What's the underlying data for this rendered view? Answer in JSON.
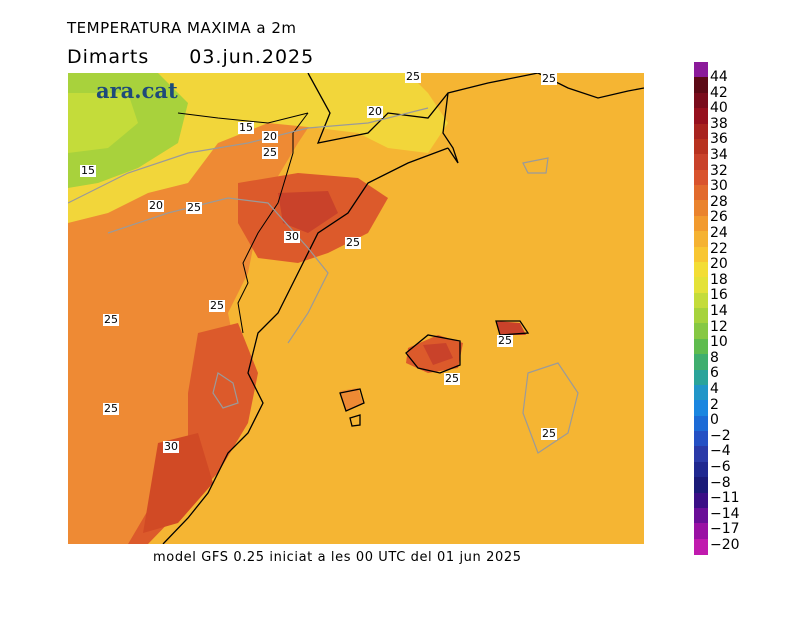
{
  "header": {
    "title": "TEMPERATURA MAXIMA a 2m",
    "day": "Dimarts",
    "date": "03.jun.2025"
  },
  "branding": {
    "logo_text": "ara.cat"
  },
  "footer": {
    "model_info": "model GFS 0.25 iniciat a les 00 UTC del 01 jun 2025"
  },
  "map": {
    "variable": "maximum 2m temperature",
    "contour_labels": [
      "25",
      "25",
      "20",
      "15",
      "20",
      "25",
      "15",
      "20",
      "25",
      "30",
      "25",
      "25",
      "25",
      "25",
      "25",
      "25",
      "30",
      "25"
    ]
  },
  "colorbar": {
    "labels": [
      "44",
      "42",
      "40",
      "38",
      "36",
      "34",
      "32",
      "30",
      "28",
      "26",
      "24",
      "22",
      "20",
      "18",
      "16",
      "14",
      "12",
      "10",
      "8",
      "6",
      "4",
      "2",
      "0",
      "−2",
      "−4",
      "−6",
      "−8",
      "−11",
      "−14",
      "−17",
      "−20"
    ],
    "colors": [
      "#8b1a9a",
      "#5c0a16",
      "#7a0c1c",
      "#96101e",
      "#a8231f",
      "#b8321f",
      "#c9422a",
      "#d9532c",
      "#e26a2c",
      "#ea832d",
      "#f29a2e",
      "#f5b232",
      "#f8c632",
      "#f3dd35",
      "#e4e238",
      "#c4dc3a",
      "#a6d33c",
      "#86c843",
      "#5fbc4e",
      "#3fae6e",
      "#2aa49a",
      "#2196c8",
      "#1a86e0",
      "#1c6bd6",
      "#2450c4",
      "#2a3aa8",
      "#1f2890",
      "#1a1a78",
      "#3a0e86",
      "#6a0e98",
      "#9a10a4",
      "#c01aae"
    ]
  },
  "colors": {
    "warm_sea": "#f5b533",
    "orange_land": "#ee8a34",
    "hot_land": "#dc5a2b",
    "cool_north": "#f2d63a",
    "cold_north": "#a8d23c",
    "logo": "#1e4a7a"
  }
}
